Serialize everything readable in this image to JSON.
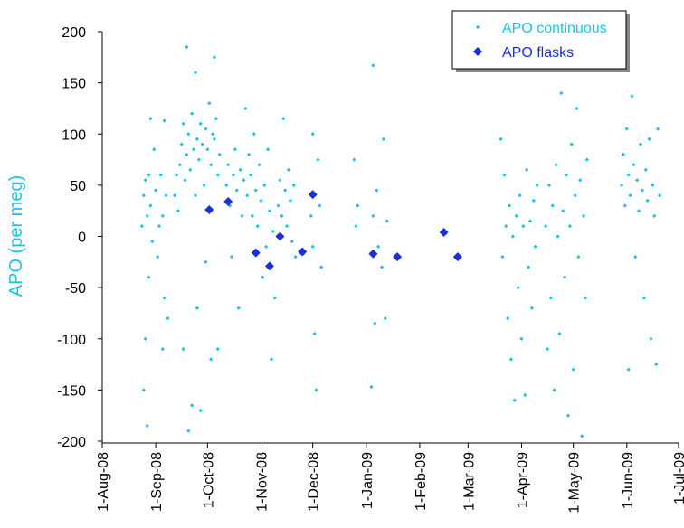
{
  "chart_data": {
    "type": "scatter",
    "y_label": "APO (per meg)",
    "xlim": [
      "2008-08-01",
      "2009-07-01"
    ],
    "ylim": [
      -200,
      200
    ],
    "yticks": [
      -200,
      -150,
      -100,
      -50,
      0,
      50,
      100,
      150,
      200
    ],
    "xticks": [
      {
        "value": "2008-08-01",
        "label": "1-Aug-08"
      },
      {
        "value": "2008-09-01",
        "label": "1-Sep-08"
      },
      {
        "value": "2008-10-01",
        "label": "1-Oct-08"
      },
      {
        "value": "2008-11-01",
        "label": "1-Nov-08"
      },
      {
        "value": "2008-12-01",
        "label": "1-Dec-08"
      },
      {
        "value": "2009-01-01",
        "label": "1-Jan-09"
      },
      {
        "value": "2009-02-01",
        "label": "1-Feb-09"
      },
      {
        "value": "2009-03-01",
        "label": "1-Mar-09"
      },
      {
        "value": "2009-04-01",
        "label": "1-Apr-09"
      },
      {
        "value": "2009-05-01",
        "label": "1-May-09"
      },
      {
        "value": "2009-06-01",
        "label": "1-Jun-09"
      },
      {
        "value": "2009-07-01",
        "label": "1-Jul-09"
      }
    ],
    "grid": false,
    "legend": "top-right",
    "series": [
      {
        "name": "APO continuous",
        "color": "#19c3e6",
        "marker": "dot",
        "x": [
          "2008-08-24",
          "2008-08-25",
          "2008-08-25",
          "2008-08-26",
          "2008-08-26",
          "2008-08-27",
          "2008-08-27",
          "2008-08-28",
          "2008-08-28",
          "2008-08-29",
          "2008-08-29",
          "2008-08-30",
          "2008-08-31",
          "2008-09-01",
          "2008-09-02",
          "2008-09-03",
          "2008-09-04",
          "2008-09-05",
          "2008-09-05",
          "2008-09-06",
          "2008-09-06",
          "2008-09-07",
          "2008-09-08",
          "2008-09-12",
          "2008-09-13",
          "2008-09-14",
          "2008-09-15",
          "2008-09-16",
          "2008-09-17",
          "2008-09-17",
          "2008-09-18",
          "2008-09-19",
          "2008-09-19",
          "2008-09-20",
          "2008-09-20",
          "2008-09-21",
          "2008-09-22",
          "2008-09-22",
          "2008-09-23",
          "2008-09-24",
          "2008-09-24",
          "2008-09-25",
          "2008-09-25",
          "2008-09-26",
          "2008-09-27",
          "2008-09-27",
          "2008-09-28",
          "2008-09-29",
          "2008-09-30",
          "2008-09-30",
          "2008-10-01",
          "2008-10-02",
          "2008-10-03",
          "2008-10-03",
          "2008-10-04",
          "2008-10-05",
          "2008-10-05",
          "2008-10-06",
          "2008-10-07",
          "2008-10-07",
          "2008-10-08",
          "2008-10-12",
          "2008-10-13",
          "2008-10-14",
          "2008-10-15",
          "2008-10-16",
          "2008-10-17",
          "2008-10-18",
          "2008-10-19",
          "2008-10-20",
          "2008-10-21",
          "2008-10-22",
          "2008-10-23",
          "2008-10-24",
          "2008-10-25",
          "2008-10-26",
          "2008-10-27",
          "2008-10-28",
          "2008-10-29",
          "2008-10-30",
          "2008-10-31",
          "2008-11-01",
          "2008-11-02",
          "2008-11-03",
          "2008-11-04",
          "2008-11-05",
          "2008-11-06",
          "2008-11-07",
          "2008-11-08",
          "2008-11-09",
          "2008-11-11",
          "2008-11-12",
          "2008-11-13",
          "2008-11-14",
          "2008-11-15",
          "2008-11-16",
          "2008-11-17",
          "2008-11-18",
          "2008-11-19",
          "2008-11-20",
          "2008-11-21",
          "2008-11-30",
          "2008-12-01",
          "2008-12-01",
          "2008-12-02",
          "2008-12-02",
          "2008-12-03",
          "2008-12-04",
          "2008-12-05",
          "2008-12-06",
          "2008-12-25",
          "2008-12-26",
          "2008-12-27",
          "2009-01-04",
          "2009-01-05",
          "2009-01-05",
          "2009-01-06",
          "2009-01-07",
          "2009-01-08",
          "2009-01-10",
          "2009-01-11",
          "2009-01-12",
          "2009-01-13",
          "2009-03-20",
          "2009-03-21",
          "2009-03-22",
          "2009-03-23",
          "2009-03-24",
          "2009-03-25",
          "2009-03-26",
          "2009-03-27",
          "2009-03-28",
          "2009-03-29",
          "2009-03-30",
          "2009-03-31",
          "2009-04-01",
          "2009-04-02",
          "2009-04-03",
          "2009-04-04",
          "2009-04-05",
          "2009-04-06",
          "2009-04-07",
          "2009-04-08",
          "2009-04-09",
          "2009-04-10",
          "2009-04-15",
          "2009-04-16",
          "2009-04-17",
          "2009-04-18",
          "2009-04-19",
          "2009-04-20",
          "2009-04-21",
          "2009-04-22",
          "2009-04-23",
          "2009-04-24",
          "2009-04-25",
          "2009-04-26",
          "2009-04-27",
          "2009-04-28",
          "2009-04-29",
          "2009-04-30",
          "2009-05-01",
          "2009-05-02",
          "2009-05-03",
          "2009-05-04",
          "2009-05-05",
          "2009-05-06",
          "2009-05-07",
          "2009-05-08",
          "2009-05-09",
          "2009-05-29",
          "2009-05-30",
          "2009-05-31",
          "2009-06-01",
          "2009-06-02",
          "2009-06-02",
          "2009-06-03",
          "2009-06-04",
          "2009-06-05",
          "2009-06-06",
          "2009-06-07",
          "2009-06-08",
          "2009-06-09",
          "2009-06-10",
          "2009-06-11",
          "2009-06-12",
          "2009-06-13",
          "2009-06-14",
          "2009-06-15",
          "2009-06-16",
          "2009-06-17",
          "2009-06-18",
          "2009-06-19",
          "2009-06-20"
        ],
        "values": [
          10,
          40,
          -150,
          55,
          -100,
          20,
          -185,
          60,
          -40,
          115,
          30,
          -5,
          85,
          45,
          -20,
          10,
          60,
          -110,
          20,
          113,
          -60,
          40,
          -80,
          40,
          60,
          25,
          70,
          90,
          110,
          -110,
          55,
          185,
          80,
          100,
          -190,
          65,
          120,
          -165,
          85,
          160,
          40,
          95,
          -70,
          75,
          110,
          -170,
          90,
          50,
          105,
          -25,
          85,
          130,
          70,
          -120,
          100,
          175,
          95,
          115,
          60,
          -110,
          80,
          50,
          70,
          30,
          -20,
          60,
          85,
          45,
          -70,
          65,
          20,
          55,
          125,
          40,
          80,
          60,
          20,
          100,
          45,
          10,
          70,
          35,
          -40,
          50,
          -10,
          85,
          25,
          -120,
          5,
          -60,
          30,
          55,
          20,
          115,
          45,
          10,
          65,
          35,
          -5,
          50,
          -20,
          20,
          100,
          -10,
          40,
          -95,
          -150,
          75,
          30,
          -30,
          75,
          10,
          30,
          -147,
          167,
          20,
          -85,
          45,
          -10,
          -30,
          95,
          -80,
          15,
          95,
          -20,
          60,
          10,
          -80,
          30,
          -120,
          0,
          -160,
          20,
          -50,
          40,
          -100,
          10,
          -155,
          65,
          -30,
          15,
          -70,
          35,
          -10,
          50,
          10,
          -110,
          50,
          -60,
          30,
          -150,
          70,
          0,
          -95,
          140,
          25,
          -40,
          60,
          -175,
          10,
          90,
          -130,
          40,
          125,
          -20,
          55,
          -195,
          20,
          -60,
          75,
          50,
          80,
          30,
          105,
          60,
          -130,
          40,
          137,
          70,
          -20,
          55,
          25,
          90,
          45,
          -60,
          65,
          35,
          95,
          -100,
          50,
          20,
          -125,
          105,
          40
        ]
      },
      {
        "name": "APO flasks",
        "color": "#1a2fd6",
        "marker": "diamond",
        "x": [
          "2008-10-02",
          "2008-10-13",
          "2008-10-29",
          "2008-11-06",
          "2008-11-12",
          "2008-11-25",
          "2008-12-01",
          "2009-01-05",
          "2009-01-19",
          "2009-02-15",
          "2009-02-23"
        ],
        "values": [
          26,
          34,
          -16,
          -29,
          0,
          -15,
          41,
          -17,
          -20,
          4,
          -20
        ]
      }
    ]
  }
}
